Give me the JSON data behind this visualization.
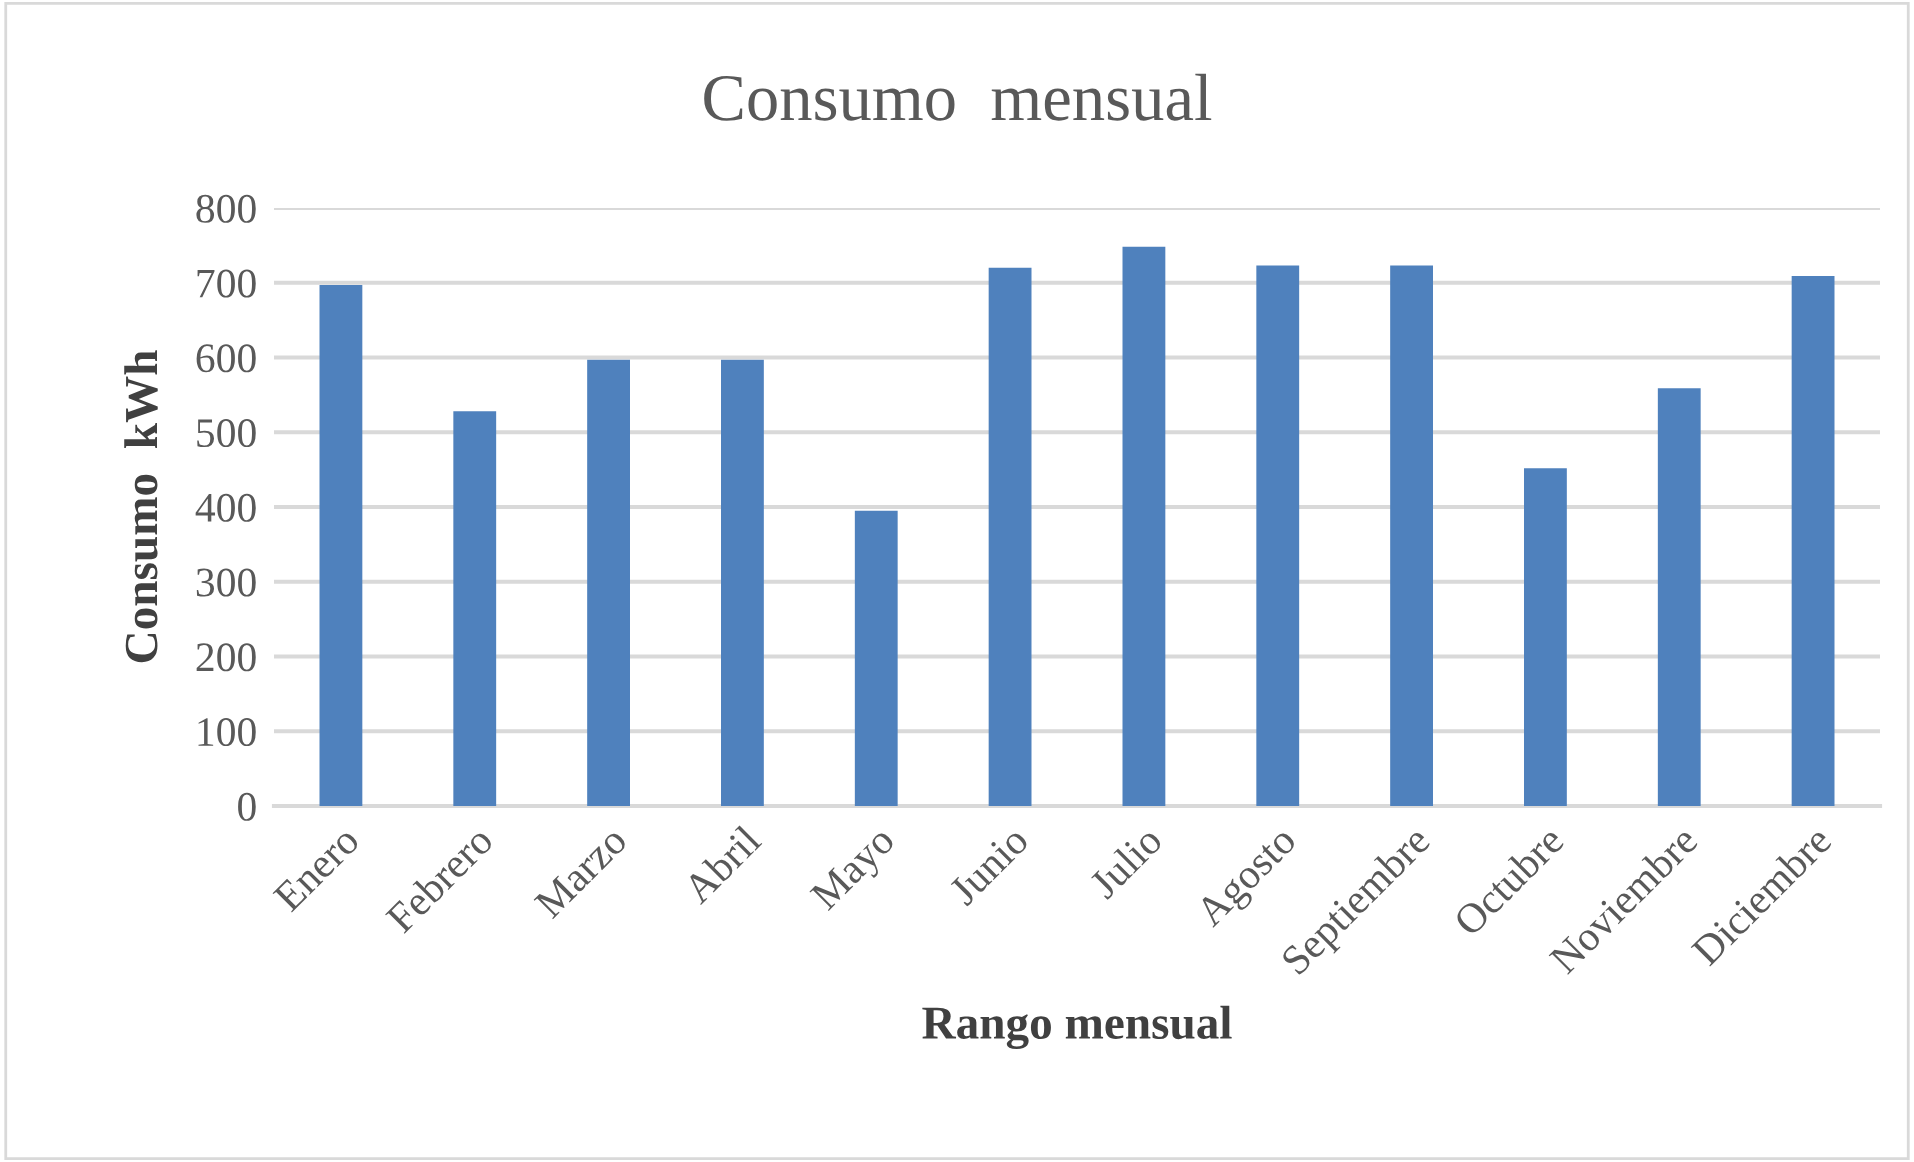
{
  "chart_data": {
    "type": "bar",
    "title": "Consumo  mensual",
    "xlabel": "Rango mensual",
    "ylabel": "Consumo  kWh",
    "categories": [
      "Enero",
      "Febrero",
      "Marzo",
      "Abril",
      "Mayo",
      "Junio",
      "Julio",
      "Agosto",
      "Septiembre",
      "Octubre",
      "Noviembre",
      "Diciembre"
    ],
    "values": [
      697,
      528,
      597,
      597,
      395,
      720,
      748,
      723,
      723,
      452,
      559,
      709
    ],
    "color": "#4f81bd",
    "ylim": [
      0,
      800
    ],
    "yticks": [
      0,
      100,
      200,
      300,
      400,
      500,
      600,
      700,
      800
    ],
    "grid": "y"
  }
}
